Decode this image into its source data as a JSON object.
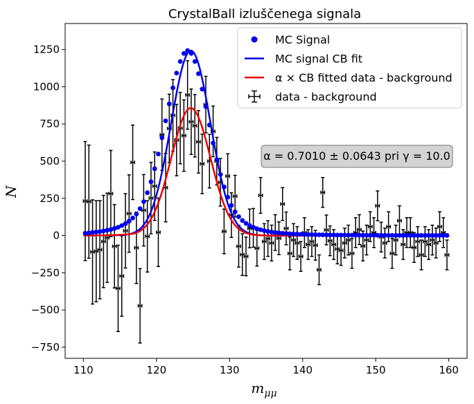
{
  "chart_data": {
    "type": "scatter",
    "title": "CrystalBall izluščenega signala",
    "xlabel": "m",
    "xlabel_sub": "μμ",
    "ylabel": "N",
    "xlim": [
      107.5,
      162.5
    ],
    "ylim": [
      -825,
      1425
    ],
    "xticks": [
      110,
      120,
      130,
      140,
      150,
      160
    ],
    "yticks": [
      -750,
      -500,
      -250,
      0,
      250,
      500,
      750,
      1000,
      1250
    ],
    "xtick_labels": [
      "110",
      "120",
      "130",
      "140",
      "150",
      "160"
    ],
    "ytick_labels": [
      "−750",
      "−500",
      "−250",
      "0",
      "250",
      "500",
      "750",
      "1000",
      "1250"
    ],
    "grid": false,
    "legend_position": "top-right",
    "legend": [
      {
        "label": "MC Signal",
        "kind": "marker",
        "color": "#0000ee"
      },
      {
        "label": "MC signal CB fit",
        "kind": "line",
        "color": "#0000ee"
      },
      {
        "label": "α × CB fitted data - background",
        "kind": "line",
        "color": "#ee0000"
      },
      {
        "label": "data - background",
        "kind": "errorbar",
        "color": "#000000"
      }
    ],
    "annotation": "α = 0.7010 ± 0.0643 pri γ = 10.0",
    "series": [
      {
        "name": "MC Signal",
        "kind": "scatter",
        "color": "#0000ee",
        "x": [
          110.25,
          110.75,
          111.25,
          111.75,
          112.25,
          112.75,
          113.25,
          113.75,
          114.25,
          114.75,
          115.25,
          115.75,
          116.25,
          116.75,
          117.25,
          117.75,
          118.25,
          118.75,
          119.25,
          119.75,
          120.25,
          120.75,
          121.25,
          121.75,
          122.25,
          122.75,
          123.25,
          123.75,
          124.25,
          124.75,
          125.25,
          125.75,
          126.25,
          126.75,
          127.25,
          127.75,
          128.25,
          128.75,
          129.25,
          129.75,
          130.25,
          130.75,
          131.25,
          131.75,
          132.25,
          132.75,
          133.25,
          133.75,
          134.25,
          134.75,
          135.25,
          135.75,
          136.25,
          136.75,
          137.25,
          137.75,
          138.25,
          138.75,
          139.25,
          139.75,
          140.25,
          140.75,
          141.25,
          141.75,
          142.25,
          142.75,
          143.25,
          143.75,
          144.25,
          144.75,
          145.25,
          145.75,
          146.25,
          146.75,
          147.25,
          147.75,
          148.25,
          148.75,
          149.25,
          149.75,
          150.25,
          150.75,
          151.25,
          151.75,
          152.25,
          152.75,
          153.25,
          153.75,
          154.25,
          154.75,
          155.25,
          155.75,
          156.25,
          156.75,
          157.25,
          157.75,
          158.25,
          158.75,
          159.25,
          159.75
        ],
        "y": [
          16,
          18,
          21,
          24,
          27,
          31,
          36,
          41,
          48,
          56,
          67,
          80,
          97,
          118,
          145,
          181,
          228,
          288,
          362,
          449,
          548,
          657,
          771,
          885,
          993,
          1092,
          1170,
          1224,
          1243,
          1224,
          1170,
          1088,
          984,
          866,
          743,
          622,
          510,
          411,
          327,
          258,
          203,
          160,
          127,
          101,
          82,
          67,
          55,
          46,
          39,
          33,
          28,
          24,
          21,
          18,
          16,
          14,
          12,
          11,
          10,
          9,
          8,
          7,
          6.5,
          6,
          5.5,
          5,
          4.5,
          4,
          4,
          3.5,
          3.5,
          3,
          3,
          2.8,
          2.6,
          2.4,
          2.2,
          2,
          2,
          2,
          1.8,
          1.6,
          1.5,
          1.4,
          1.3,
          1.2,
          1.1,
          1,
          1,
          1,
          1,
          1,
          1,
          1,
          1,
          1,
          1,
          1,
          1,
          1
        ]
      },
      {
        "name": "MC signal CB fit",
        "kind": "curve",
        "color": "#0000ee",
        "peak": 1243,
        "mean": 124.7,
        "sigma": 2.7,
        "tail": 3.4,
        "tail_decay": 3.6,
        "x_range": [
          110,
          160
        ]
      },
      {
        "name": "α × CB fitted data - background",
        "kind": "curve",
        "color": "#ee0000",
        "peak": 857,
        "mean": 124.7,
        "sigma": 2.7,
        "tail": 2.9,
        "tail_decay": 2.2,
        "x_range": [
          110,
          160
        ]
      },
      {
        "name": "data - background",
        "kind": "errorbar",
        "color": "#000000",
        "x_err": 0.25,
        "x": [
          110.25,
          110.75,
          111.25,
          111.75,
          112.25,
          112.75,
          113.25,
          113.75,
          114.25,
          114.75,
          115.25,
          115.75,
          116.25,
          116.75,
          117.25,
          117.75,
          118.25,
          118.75,
          119.25,
          119.75,
          120.25,
          120.75,
          121.25,
          121.75,
          122.25,
          122.75,
          123.25,
          123.75,
          124.25,
          124.75,
          125.25,
          125.75,
          126.25,
          126.75,
          127.25,
          127.75,
          128.25,
          128.75,
          129.25,
          129.75,
          130.25,
          130.75,
          131.25,
          131.75,
          132.25,
          132.75,
          133.25,
          133.75,
          134.25,
          134.75,
          135.25,
          135.75,
          136.25,
          136.75,
          137.25,
          137.75,
          138.25,
          138.75,
          139.25,
          139.75,
          140.25,
          140.75,
          141.25,
          141.75,
          142.25,
          142.75,
          143.25,
          143.75,
          144.25,
          144.75,
          145.25,
          145.75,
          146.25,
          146.75,
          147.25,
          147.75,
          148.25,
          148.75,
          149.25,
          149.75,
          150.25,
          150.75,
          151.25,
          151.75,
          152.25,
          152.75,
          153.25,
          153.75,
          154.25,
          154.75,
          155.25,
          155.75,
          156.25,
          156.75,
          157.25,
          157.75,
          158.25,
          158.75,
          159.25,
          159.75
        ],
        "y": [
          232,
          228,
          -110,
          -105,
          -95,
          -40,
          -15,
          282,
          -72,
          -355,
          -272,
          32,
          148,
          492,
          -82,
          -472,
          170,
          -5,
          252,
          332,
          22,
          678,
          322,
          720,
          808,
          642,
          722,
          672,
          945,
          765,
          738,
          630,
          482,
          880,
          500,
          700,
          500,
          358,
          28,
          400,
          138,
          265,
          -72,
          -128,
          -140,
          48,
          52,
          -85,
          270,
          -40,
          -20,
          -50,
          20,
          -18,
          212,
          48,
          -120,
          -30,
          -50,
          -140,
          20,
          -60,
          -40,
          -65,
          -230,
          290,
          38,
          -35,
          -60,
          -90,
          -100,
          -50,
          -30,
          -120,
          20,
          40,
          -70,
          -30,
          60,
          20,
          200,
          -10,
          -50,
          60,
          -120,
          -30,
          100,
          -60,
          20,
          20,
          -80,
          -40,
          -130,
          -40,
          -60,
          -30,
          -50,
          60,
          20,
          -130
        ],
        "y_err": [
          400,
          380,
          350,
          340,
          330,
          310,
          300,
          290,
          280,
          290,
          270,
          250,
          260,
          250,
          240,
          250,
          240,
          240,
          240,
          230,
          230,
          240,
          230,
          230,
          240,
          240,
          240,
          240,
          230,
          220,
          210,
          210,
          200,
          190,
          180,
          170,
          160,
          160,
          150,
          150,
          150,
          140,
          140,
          140,
          130,
          130,
          130,
          120,
          120,
          120,
          120,
          120,
          120,
          110,
          110,
          110,
          110,
          110,
          110,
          100,
          100,
          100,
          100,
          100,
          100,
          100,
          100,
          100,
          100,
          100,
          100,
          100,
          100,
          100,
          100,
          100,
          100,
          100,
          100,
          100,
          100,
          100,
          100,
          100,
          100,
          100,
          100,
          100,
          100,
          100,
          100,
          100,
          100,
          100,
          100,
          100,
          100,
          100,
          100,
          100
        ]
      }
    ]
  }
}
